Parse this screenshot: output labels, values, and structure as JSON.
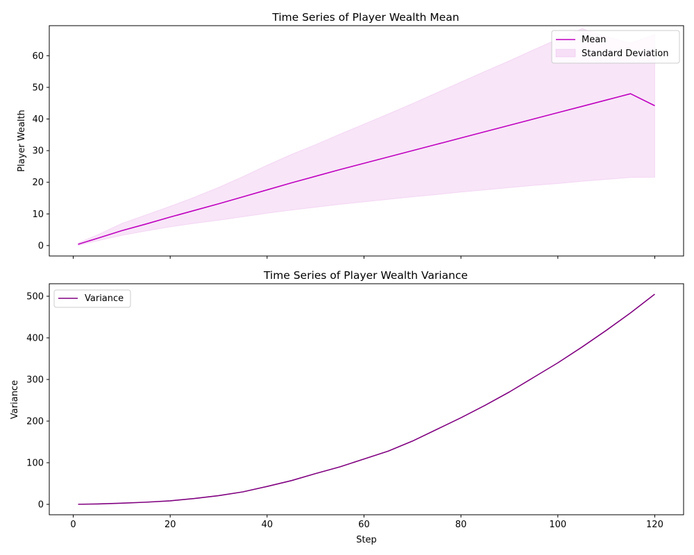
{
  "chart_data": [
    {
      "type": "line",
      "title": "Time Series of Player Wealth Mean",
      "xlabel": "",
      "ylabel": "Player Wealth",
      "xlim": [
        -4.95,
        125.95
      ],
      "ylim": [
        -3.3,
        69.5
      ],
      "xticks": [
        0,
        20,
        40,
        60,
        80,
        100,
        120
      ],
      "xtick_labels_visible": false,
      "yticks": [
        0,
        10,
        20,
        30,
        40,
        50,
        60
      ],
      "grid": false,
      "legend_position": "top-right",
      "x": [
        1,
        5,
        10,
        15,
        20,
        25,
        30,
        35,
        40,
        45,
        50,
        55,
        60,
        65,
        70,
        75,
        80,
        85,
        90,
        95,
        100,
        105,
        110,
        115,
        120
      ],
      "series": [
        {
          "name": "Mean",
          "color": "#bf00bf",
          "values": [
            0.4,
            2.3,
            4.7,
            6.8,
            9.0,
            11.1,
            13.2,
            15.4,
            17.6,
            19.8,
            21.9,
            24.0,
            26.0,
            28.0,
            30.0,
            32.0,
            34.0,
            36.0,
            38.0,
            40.0,
            42.0,
            44.0,
            46.0,
            48.0,
            44.2
          ]
        }
      ],
      "bands": [
        {
          "name": "Standard Deviation",
          "color": "#bf00bf",
          "alpha": 0.1,
          "lower": [
            0.0,
            1.5,
            3.2,
            4.6,
            5.9,
            7.0,
            8.0,
            9.1,
            10.2,
            11.2,
            12.1,
            13.0,
            13.8,
            14.6,
            15.4,
            16.1,
            16.9,
            17.6,
            18.3,
            19.0,
            19.6,
            20.3,
            20.9,
            21.5,
            21.6
          ],
          "upper": [
            0.8,
            3.4,
            7.0,
            9.7,
            12.4,
            15.3,
            18.4,
            21.8,
            25.4,
            28.8,
            31.9,
            35.2,
            38.4,
            41.6,
            44.9,
            48.3,
            51.7,
            55.1,
            58.4,
            61.9,
            65.3,
            68.6,
            66.0,
            64.0,
            66.7
          ]
        }
      ]
    },
    {
      "type": "line",
      "title": "Time Series of Player Wealth Variance",
      "xlabel": "Step",
      "ylabel": "Variance",
      "xlim": [
        -4.95,
        125.95
      ],
      "ylim": [
        -25,
        530
      ],
      "xticks": [
        0,
        20,
        40,
        60,
        80,
        100,
        120
      ],
      "yticks": [
        0,
        100,
        200,
        300,
        400,
        500
      ],
      "grid": false,
      "legend_position": "top-left",
      "x": [
        1,
        5,
        10,
        15,
        20,
        25,
        30,
        35,
        40,
        45,
        50,
        55,
        60,
        65,
        70,
        75,
        80,
        85,
        90,
        95,
        100,
        105,
        110,
        115,
        120
      ],
      "series": [
        {
          "name": "Variance",
          "color": "#800080",
          "values": [
            0.2,
            1.0,
            2.8,
            5.2,
            8.5,
            14.0,
            21.0,
            30.0,
            43.0,
            57.0,
            74.0,
            90.0,
            109.0,
            128.0,
            152.0,
            180.0,
            208.0,
            238.0,
            270.0,
            305.0,
            340.0,
            378.0,
            418.0,
            460.0,
            505.0
          ]
        }
      ]
    }
  ]
}
